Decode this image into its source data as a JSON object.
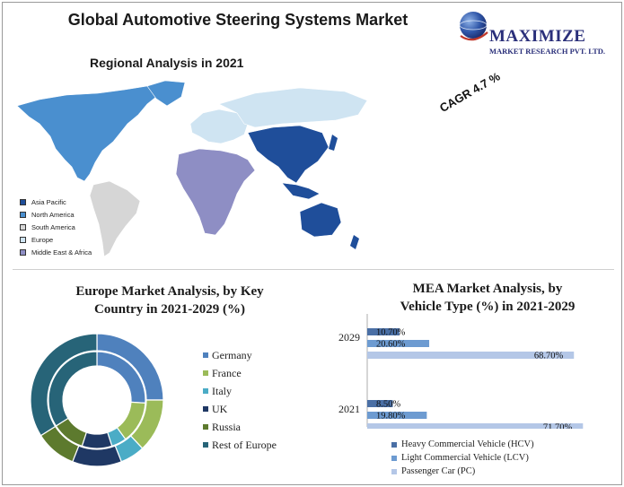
{
  "header": {
    "title": "Global Automotive Steering Systems Market",
    "logo_name": "MAXIMIZE",
    "logo_sub": "MARKET RESEARCH PVT. LTD."
  },
  "map": {
    "title": "Regional Analysis in 2021",
    "cagr": "CAGR 4.7 %",
    "legend": [
      {
        "label": "Asia Pacific",
        "color": "#1f4e9a"
      },
      {
        "label": "North America",
        "color": "#4a8fcf"
      },
      {
        "label": "South America",
        "color": "#d6d6d6"
      },
      {
        "label": "Europe",
        "color": "#cfe4f2"
      },
      {
        "label": "Middle East & Africa",
        "color": "#8e8ec4"
      }
    ]
  },
  "europe": {
    "title_line1": "Europe Market Analysis, by Key",
    "title_line2": "Country in 2021-2029 (%)",
    "legend": [
      {
        "label": "Germany",
        "color": "#4f81bd"
      },
      {
        "label": "France",
        "color": "#9bbb59"
      },
      {
        "label": "Italy",
        "color": "#4bacc6"
      },
      {
        "label": "UK",
        "color": "#1f3864"
      },
      {
        "label": "Russia",
        "color": "#5d7a2e"
      },
      {
        "label": "Rest of Europe",
        "color": "#276478"
      }
    ]
  },
  "mea": {
    "title_line1": "MEA Market Analysis, by",
    "title_line2": "Vehicle Type (%) in 2021-2029",
    "legend": [
      {
        "label": "Heavy Commercial Vehicle (HCV)",
        "color": "#4a6fa5"
      },
      {
        "label": "Light Commercial Vehicle (LCV)",
        "color": "#6d9bd1"
      },
      {
        "label": "Passenger Car (PC)",
        "color": "#b4c7e7"
      }
    ]
  },
  "chart_data": [
    {
      "type": "pie",
      "title": "Europe Market Analysis, by Key Country in 2021-2029 (%)",
      "categories": [
        "Germany",
        "France",
        "Italy",
        "UK",
        "Russia",
        "Rest of Europe"
      ],
      "series": [
        {
          "values": [
            25,
            13,
            6,
            12,
            10,
            34
          ]
        },
        {
          "values": [
            26,
            14,
            5,
            10,
            11,
            34
          ]
        }
      ]
    },
    {
      "type": "bar",
      "title": "MEA Market Analysis, by Vehicle Type (%) in 2021-2029",
      "categories": [
        "2029",
        "2021"
      ],
      "series": [
        {
          "name": "Heavy Commercial Vehicle (HCV)",
          "values": [
            10.7,
            8.5
          ],
          "labels": [
            "10.70%",
            "8.50%"
          ]
        },
        {
          "name": "Light Commercial Vehicle (LCV)",
          "values": [
            20.6,
            19.8
          ],
          "labels": [
            "20.60%",
            "19.80%"
          ]
        },
        {
          "name": "Passenger Car (PC)",
          "values": [
            68.7,
            71.7
          ],
          "labels": [
            "68.70%",
            "71.70%"
          ]
        }
      ],
      "xlim": [
        0,
        74
      ]
    }
  ]
}
